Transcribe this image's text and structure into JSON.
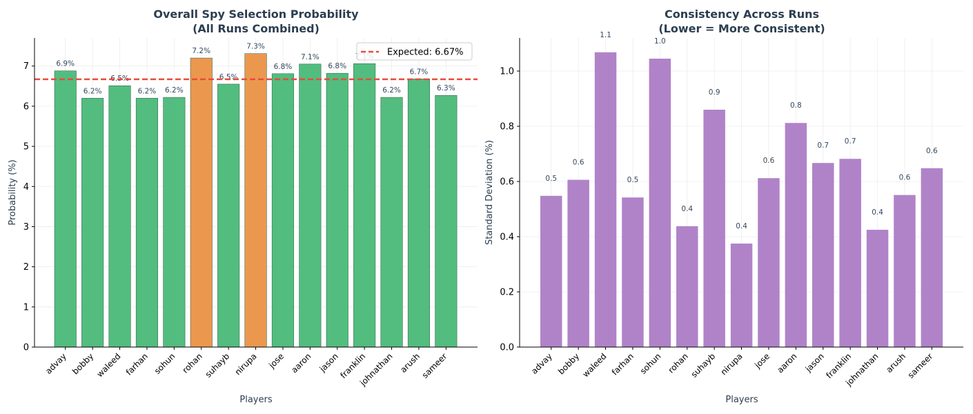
{
  "chart_data": [
    {
      "type": "bar",
      "title": "Overall Spy Selection Probability",
      "subtitle": "(All Runs Combined)",
      "xlabel": "Players",
      "ylabel": "Probability (%)",
      "ylim": [
        0,
        7.7
      ],
      "yticks": [
        0,
        1,
        2,
        3,
        4,
        5,
        6,
        7
      ],
      "grid": true,
      "categories": [
        "advay",
        "bobby",
        "waleed",
        "farhan",
        "sohun",
        "rohan",
        "suhayb",
        "nirupa",
        "jose",
        "aaron",
        "jason",
        "franklin",
        "johnathan",
        "arush",
        "sameer"
      ],
      "values": [
        6.88,
        6.2,
        6.51,
        6.2,
        6.22,
        7.2,
        6.55,
        7.31,
        6.81,
        7.05,
        6.82,
        7.06,
        6.22,
        6.68,
        6.27
      ],
      "data_labels": [
        "6.9%",
        "6.2%",
        "6.5%",
        "6.2%",
        "6.2%",
        "7.2%",
        "6.5%",
        "7.3%",
        "6.8%",
        "7.1%",
        "6.8%",
        "7.1%",
        "6.2%",
        "6.7%",
        "6.3%"
      ],
      "bar_colors": [
        "#52bd7f",
        "#52bd7f",
        "#52bd7f",
        "#52bd7f",
        "#52bd7f",
        "#eb984e",
        "#52bd7f",
        "#eb984e",
        "#52bd7f",
        "#52bd7f",
        "#52bd7f",
        "#52bd7f",
        "#52bd7f",
        "#52bd7f",
        "#52bd7f"
      ],
      "reference_line": {
        "value": 6.67,
        "label": "Expected: 6.67%",
        "color": "#e74c3c"
      },
      "legend_position": "top-right"
    },
    {
      "type": "bar",
      "title": "Consistency Across Runs",
      "subtitle": "(Lower = More Consistent)",
      "xlabel": "Players",
      "ylabel": "Standard Deviation (%)",
      "ylim": [
        0,
        1.12
      ],
      "yticks": [
        0.0,
        0.2,
        0.4,
        0.6,
        0.8,
        1.0
      ],
      "ytick_labels": [
        "0.0",
        "0.2",
        "0.4",
        "0.6",
        "0.8",
        "1.0"
      ],
      "grid": true,
      "categories": [
        "advay",
        "bobby",
        "waleed",
        "farhan",
        "sohun",
        "rohan",
        "suhayb",
        "nirupa",
        "jose",
        "aaron",
        "jason",
        "franklin",
        "johnathan",
        "arush",
        "sameer"
      ],
      "values": [
        0.548,
        0.606,
        1.068,
        0.542,
        1.045,
        0.438,
        0.86,
        0.375,
        0.612,
        0.812,
        0.667,
        0.682,
        0.425,
        0.551,
        0.648
      ],
      "data_labels": [
        "0.5",
        "0.6",
        "1.1",
        "0.5",
        "1.0",
        "0.4",
        "0.9",
        "0.4",
        "0.6",
        "0.8",
        "0.7",
        "0.7",
        "0.4",
        "0.6",
        "0.6"
      ],
      "bar_color": "#b083c9"
    }
  ],
  "colors": {
    "title": "#2c3e50",
    "axis_label": "#2c3e50",
    "data_label": "#34495e",
    "grid": "#ececec"
  }
}
